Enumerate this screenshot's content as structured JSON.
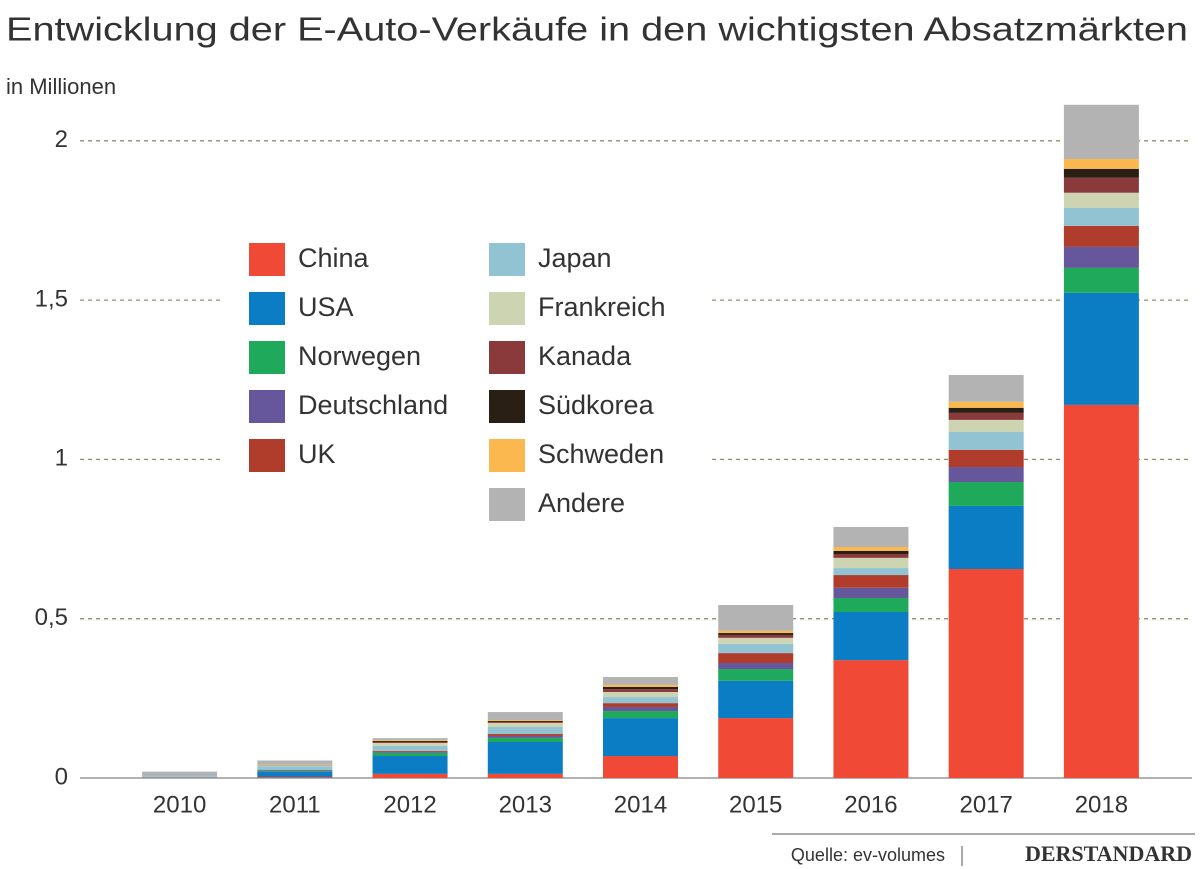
{
  "chart_data": {
    "type": "bar",
    "stacked": true,
    "title": "Entwicklung der E-Auto-Verkäufe in den wichtigsten Absatzmärkten",
    "subtitle": "in Millionen",
    "source": "Quelle: ev-volumes",
    "brand": "DERSTANDARD",
    "categories": [
      "2010",
      "2011",
      "2012",
      "2013",
      "2014",
      "2015",
      "2016",
      "2017",
      "2018"
    ],
    "series": [
      {
        "name": "China",
        "color": "#f04a37",
        "values": [
          0.001,
          0.003,
          0.013,
          0.013,
          0.069,
          0.188,
          0.37,
          0.656,
          1.171
        ]
      },
      {
        "name": "USA",
        "color": "#0a7dc5",
        "values": [
          0.001,
          0.017,
          0.056,
          0.1,
          0.119,
          0.117,
          0.151,
          0.198,
          0.352
        ]
      },
      {
        "name": "Norwegen",
        "color": "#1fa95a",
        "values": [
          0,
          0.002,
          0.01,
          0.013,
          0.022,
          0.037,
          0.044,
          0.075,
          0.078
        ]
      },
      {
        "name": "Deutschland",
        "color": "#66569b",
        "values": [
          0,
          0.002,
          0.003,
          0.006,
          0.013,
          0.019,
          0.032,
          0.047,
          0.066
        ]
      },
      {
        "name": "UK",
        "color": "#b03c2c",
        "values": [
          0,
          0.001,
          0.003,
          0.006,
          0.012,
          0.031,
          0.04,
          0.054,
          0.066
        ]
      },
      {
        "name": "Japan",
        "color": "#92c3d3",
        "values": [
          0.003,
          0.012,
          0.016,
          0.022,
          0.019,
          0.029,
          0.022,
          0.056,
          0.057
        ]
      },
      {
        "name": "Frankreich",
        "color": "#ccd4b2",
        "values": [
          0,
          0.003,
          0.009,
          0.013,
          0.016,
          0.019,
          0.032,
          0.038,
          0.047
        ]
      },
      {
        "name": "Kanada",
        "color": "#8b3a3c",
        "values": [
          0,
          0.001,
          0.003,
          0.003,
          0.009,
          0.009,
          0.012,
          0.022,
          0.047
        ]
      },
      {
        "name": "Südkorea",
        "color": "#2a1f14",
        "values": [
          0,
          0,
          0.003,
          0.003,
          0.007,
          0.006,
          0.01,
          0.016,
          0.028
        ]
      },
      {
        "name": "Schweden",
        "color": "#fbb84e",
        "values": [
          0,
          0.001,
          0.003,
          0.003,
          0.006,
          0.007,
          0.012,
          0.019,
          0.031
        ]
      },
      {
        "name": "Andere",
        "color": "#b3b3b3",
        "values": [
          0.015,
          0.013,
          0.006,
          0.025,
          0.025,
          0.081,
          0.063,
          0.084,
          0.17
        ]
      }
    ],
    "ylim": [
      0,
      2.15
    ],
    "yticks": [
      0,
      {
        "value": 0.5,
        "label": "0,5"
      },
      1,
      {
        "value": 1.5,
        "label": "1,5"
      },
      2
    ],
    "grid": true
  }
}
